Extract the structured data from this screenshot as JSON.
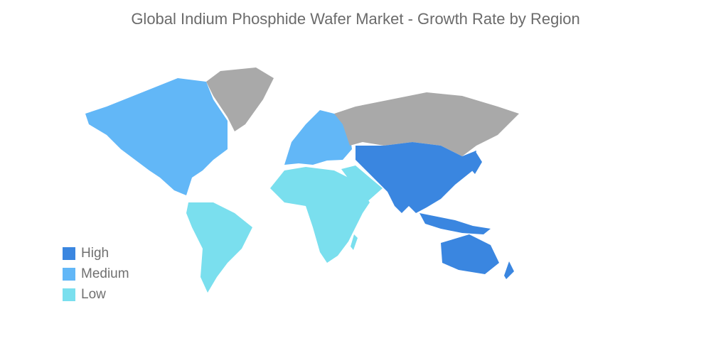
{
  "title": "Global Indium Phosphide Wafer Market - Growth Rate by Region",
  "colors": {
    "high": "#3a86e0",
    "medium": "#62b7f7",
    "low": "#7adfee",
    "no_data": "#a9a9a9"
  },
  "legend": [
    {
      "label": "High",
      "color": "#3a86e0"
    },
    {
      "label": "Medium",
      "color": "#62b7f7"
    },
    {
      "label": "Low",
      "color": "#7adfee"
    }
  ],
  "regions": {
    "north_america": "medium",
    "europe": "medium",
    "south_america": "low",
    "africa": "low",
    "middle_east": "low",
    "asia_pacific": "high",
    "russia_greenland": "no_data"
  }
}
